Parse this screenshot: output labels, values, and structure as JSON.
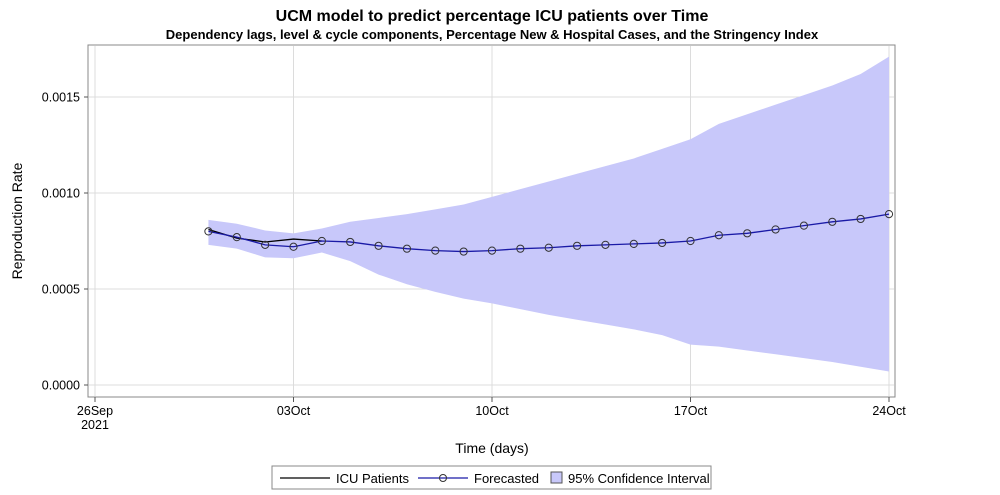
{
  "chart_data": {
    "type": "line",
    "title": "UCM model to predict percentage ICU patients over Time",
    "subtitle": "Dependency lags, level & cycle components, Percentage New & Hospital Cases, and the Stringency Index",
    "xlabel": "Time (days)",
    "ylabel": "Reproduction Rate",
    "ylim": [
      -4e-05,
      0.00171
    ],
    "xlim": [
      "2021-09-26",
      "2021-10-24"
    ],
    "x_ticks": [
      {
        "date": "2021-09-26",
        "label": "26Sep",
        "sublabel": "2021"
      },
      {
        "date": "2021-10-03",
        "label": "03Oct",
        "sublabel": ""
      },
      {
        "date": "2021-10-10",
        "label": "10Oct",
        "sublabel": ""
      },
      {
        "date": "2021-10-17",
        "label": "17Oct",
        "sublabel": ""
      },
      {
        "date": "2021-10-24",
        "label": "24Oct",
        "sublabel": ""
      }
    ],
    "y_ticks": [
      {
        "value": 0.0,
        "label": "0.0000"
      },
      {
        "value": 0.0005,
        "label": "0.0005"
      },
      {
        "value": 0.001,
        "label": "0.0010"
      },
      {
        "value": 0.0015,
        "label": "0.0015"
      }
    ],
    "grid": true,
    "legend_position": "bottom",
    "series": [
      {
        "name": "ICU Patients",
        "style": "line",
        "color": "#000000",
        "points": [
          {
            "x": "2021-09-30",
            "y": 0.00081
          },
          {
            "x": "2021-10-01",
            "y": 0.000765
          },
          {
            "x": "2021-10-02",
            "y": 0.000745
          },
          {
            "x": "2021-10-03",
            "y": 0.00076
          },
          {
            "x": "2021-10-04",
            "y": 0.00075
          }
        ]
      },
      {
        "name": "Forecasted",
        "style": "line-markers",
        "color": "#1a1aa6",
        "marker_color": "#333333",
        "points": [
          {
            "x": "2021-09-30",
            "y": 0.0008
          },
          {
            "x": "2021-10-01",
            "y": 0.00077
          },
          {
            "x": "2021-10-02",
            "y": 0.00073
          },
          {
            "x": "2021-10-03",
            "y": 0.00072
          },
          {
            "x": "2021-10-04",
            "y": 0.00075
          },
          {
            "x": "2021-10-05",
            "y": 0.000745
          },
          {
            "x": "2021-10-06",
            "y": 0.000725
          },
          {
            "x": "2021-10-07",
            "y": 0.00071
          },
          {
            "x": "2021-10-08",
            "y": 0.0007
          },
          {
            "x": "2021-10-09",
            "y": 0.000695
          },
          {
            "x": "2021-10-10",
            "y": 0.0007
          },
          {
            "x": "2021-10-11",
            "y": 0.00071
          },
          {
            "x": "2021-10-12",
            "y": 0.000715
          },
          {
            "x": "2021-10-13",
            "y": 0.000725
          },
          {
            "x": "2021-10-14",
            "y": 0.00073
          },
          {
            "x": "2021-10-15",
            "y": 0.000735
          },
          {
            "x": "2021-10-16",
            "y": 0.00074
          },
          {
            "x": "2021-10-17",
            "y": 0.00075
          },
          {
            "x": "2021-10-18",
            "y": 0.00078
          },
          {
            "x": "2021-10-19",
            "y": 0.00079
          },
          {
            "x": "2021-10-20",
            "y": 0.00081
          },
          {
            "x": "2021-10-21",
            "y": 0.00083
          },
          {
            "x": "2021-10-22",
            "y": 0.00085
          },
          {
            "x": "2021-10-23",
            "y": 0.000865
          },
          {
            "x": "2021-10-24",
            "y": 0.00089
          }
        ]
      }
    ],
    "confidence_interval": {
      "name": "95% Confidence Interval",
      "color": "#c8c8fa",
      "points": [
        {
          "x": "2021-09-30",
          "lower": 0.00073,
          "upper": 0.00086
        },
        {
          "x": "2021-10-01",
          "lower": 0.00071,
          "upper": 0.00084
        },
        {
          "x": "2021-10-02",
          "lower": 0.000665,
          "upper": 0.000805
        },
        {
          "x": "2021-10-03",
          "lower": 0.00066,
          "upper": 0.00079
        },
        {
          "x": "2021-10-04",
          "lower": 0.00069,
          "upper": 0.000815
        },
        {
          "x": "2021-10-05",
          "lower": 0.000645,
          "upper": 0.00085
        },
        {
          "x": "2021-10-06",
          "lower": 0.000575,
          "upper": 0.00087
        },
        {
          "x": "2021-10-07",
          "lower": 0.000525,
          "upper": 0.00089
        },
        {
          "x": "2021-10-08",
          "lower": 0.000485,
          "upper": 0.000915
        },
        {
          "x": "2021-10-09",
          "lower": 0.00045,
          "upper": 0.00094
        },
        {
          "x": "2021-10-10",
          "lower": 0.000425,
          "upper": 0.00098
        },
        {
          "x": "2021-10-11",
          "lower": 0.000395,
          "upper": 0.00102
        },
        {
          "x": "2021-10-12",
          "lower": 0.000365,
          "upper": 0.00106
        },
        {
          "x": "2021-10-13",
          "lower": 0.00034,
          "upper": 0.0011
        },
        {
          "x": "2021-10-14",
          "lower": 0.000315,
          "upper": 0.00114
        },
        {
          "x": "2021-10-15",
          "lower": 0.00029,
          "upper": 0.00118
        },
        {
          "x": "2021-10-16",
          "lower": 0.00026,
          "upper": 0.00123
        },
        {
          "x": "2021-10-17",
          "lower": 0.00021,
          "upper": 0.00128
        },
        {
          "x": "2021-10-18",
          "lower": 0.0002,
          "upper": 0.00136
        },
        {
          "x": "2021-10-19",
          "lower": 0.00018,
          "upper": 0.00141
        },
        {
          "x": "2021-10-20",
          "lower": 0.00016,
          "upper": 0.00146
        },
        {
          "x": "2021-10-21",
          "lower": 0.00014,
          "upper": 0.00151
        },
        {
          "x": "2021-10-22",
          "lower": 0.00012,
          "upper": 0.00156
        },
        {
          "x": "2021-10-23",
          "lower": 9.5e-05,
          "upper": 0.00162
        },
        {
          "x": "2021-10-24",
          "lower": 7e-05,
          "upper": 0.00171
        }
      ]
    },
    "legend": [
      {
        "key": "icu",
        "label": "ICU Patients"
      },
      {
        "key": "forecast",
        "label": "Forecasted"
      },
      {
        "key": "ci",
        "label": "95% Confidence Interval"
      }
    ]
  }
}
